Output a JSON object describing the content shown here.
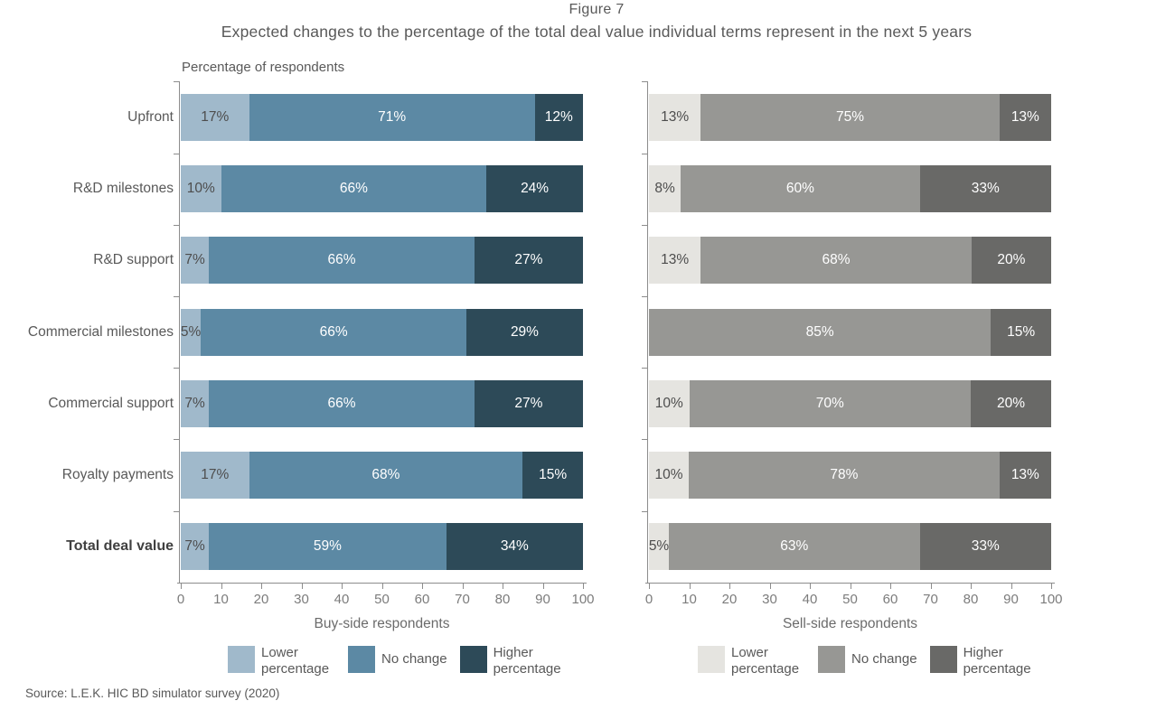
{
  "figure": {
    "label": "Figure 7",
    "title": "Expected changes to the percentage of the total deal value individual terms represent in the next 5 years",
    "axis_note": "Percentage of respondents",
    "source": "Source: L.E.K. HIC BD simulator survey (2020)"
  },
  "categories": [
    "Upfront",
    "R&D milestones",
    "R&D support",
    "Commercial milestones",
    "Commercial support",
    "Royalty payments",
    "Total deal value"
  ],
  "chart_data": [
    {
      "type": "bar",
      "orientation": "horizontal",
      "stacked": true,
      "xlabel": "Buy-side respondents",
      "xlim": [
        0,
        100
      ],
      "xticks": [
        0,
        10,
        20,
        30,
        40,
        50,
        60,
        70,
        80,
        90,
        100
      ],
      "categories": [
        "Upfront",
        "R&D milestones",
        "R&D support",
        "Commercial milestones",
        "Commercial support",
        "Royalty payments",
        "Total deal value"
      ],
      "series": [
        {
          "name": "Lower percentage",
          "color": "#a0b9cb",
          "label_color": "#4d4d4d",
          "values": [
            17,
            10,
            7,
            5,
            7,
            17,
            7
          ]
        },
        {
          "name": "No change",
          "color": "#5c89a4",
          "label_color": "#ffffff",
          "values": [
            71,
            66,
            66,
            66,
            66,
            68,
            59
          ]
        },
        {
          "name": "Higher percentage",
          "color": "#2d4a58",
          "label_color": "#ffffff",
          "values": [
            12,
            24,
            27,
            29,
            27,
            15,
            34
          ]
        }
      ],
      "legend": [
        "Lower percentage",
        "No change",
        "Higher percentage"
      ],
      "legend_position": "bottom"
    },
    {
      "type": "bar",
      "orientation": "horizontal",
      "stacked": true,
      "xlabel": "Sell-side respondents",
      "xlim": [
        0,
        100
      ],
      "xticks": [
        0,
        10,
        20,
        30,
        40,
        50,
        60,
        70,
        80,
        90,
        100
      ],
      "categories": [
        "Upfront",
        "R&D milestones",
        "R&D support",
        "Commercial milestones",
        "Commercial support",
        "Royalty payments",
        "Total deal value"
      ],
      "series": [
        {
          "name": "Lower percentage",
          "color": "#e5e4e0",
          "label_color": "#4d4d4d",
          "values": [
            13,
            8,
            13,
            0,
            10,
            10,
            5
          ]
        },
        {
          "name": "No change",
          "color": "#979794",
          "label_color": "#ffffff",
          "values": [
            75,
            60,
            68,
            85,
            70,
            78,
            63
          ]
        },
        {
          "name": "Higher percentage",
          "color": "#696967",
          "label_color": "#ffffff",
          "values": [
            13,
            33,
            20,
            15,
            20,
            13,
            33
          ]
        }
      ],
      "legend": [
        "Lower percentage",
        "No change",
        "Higher percentage"
      ],
      "legend_position": "bottom"
    }
  ]
}
